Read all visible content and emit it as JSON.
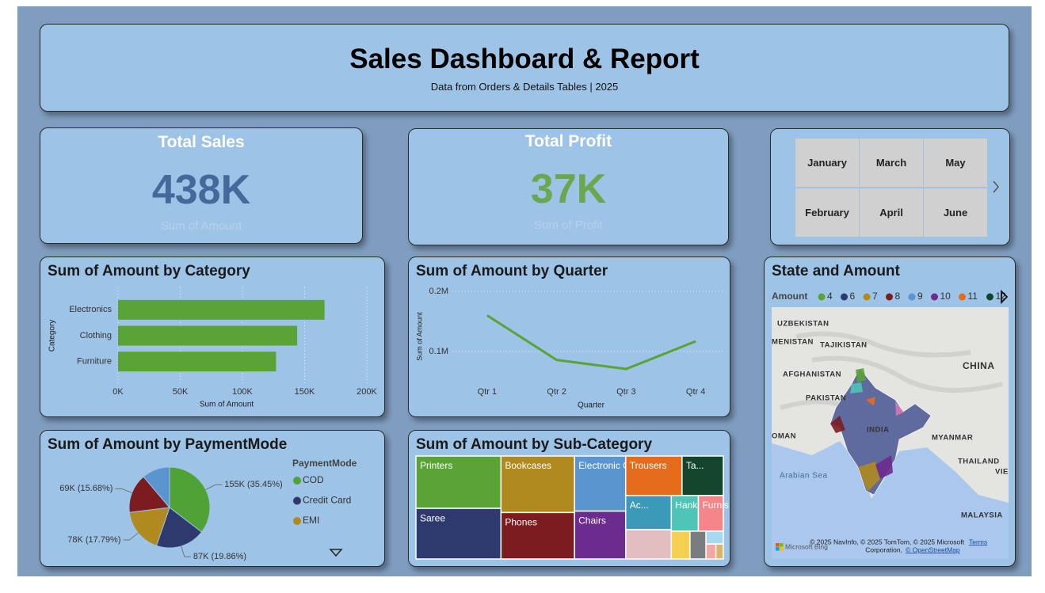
{
  "header": {
    "title": "Sales Dashboard & Report",
    "subtitle": "Data from Orders & Details Tables | 2025"
  },
  "kpis": [
    {
      "title": "Total Sales",
      "value": "438K",
      "label": "Sum of Amount",
      "color": "#44699a"
    },
    {
      "title": "Total Profit",
      "value": "37K",
      "label": "Sum of Profit",
      "color": "#6aa84f"
    }
  ],
  "slicer": {
    "items": [
      "January",
      "March",
      "May",
      "February",
      "April",
      "June"
    ]
  },
  "chart_data": [
    {
      "type": "bar",
      "orientation": "horizontal",
      "title": "Sum of Amount by Category",
      "categories": [
        "Electronics",
        "Clothing",
        "Furniture"
      ],
      "values": [
        166000,
        144000,
        127000
      ],
      "color": "#5aa437",
      "xlim": [
        0,
        200000
      ],
      "xticks": [
        {
          "value": 0,
          "label": "0K"
        },
        {
          "value": 50000,
          "label": "50K"
        },
        {
          "value": 100000,
          "label": "100K"
        },
        {
          "value": 150000,
          "label": "150K"
        },
        {
          "value": 200000,
          "label": "200K"
        }
      ],
      "xlabel": "Sum of Amount",
      "ylabel": "Category",
      "grid": true
    },
    {
      "type": "line",
      "title": "Sum of Amount by Quarter",
      "categories": [
        "Qtr 1",
        "Qtr 2",
        "Qtr 3",
        "Qtr 4"
      ],
      "values": [
        160000,
        86000,
        71000,
        117000
      ],
      "color": "#5aa437",
      "ylim": [
        50000,
        200000
      ],
      "yticks": [
        {
          "value": 100000,
          "label": "0.1M"
        },
        {
          "value": 200000,
          "label": "0.2M"
        }
      ],
      "xlabel": "Quarter",
      "ylabel": "Sum of Amount",
      "grid": true
    },
    {
      "type": "pie",
      "title": "Sum of Amount by PaymentMode",
      "legend_title": "PaymentMode",
      "categories": [
        "COD",
        "Credit Card",
        "EMI",
        null,
        null
      ],
      "values": [
        155000,
        87000,
        78000,
        69000,
        49000
      ],
      "value_labels": [
        "155K (35.45%)",
        "87K (19.86%)",
        "78K (17.79%)",
        "69K (15.68%)",
        null
      ],
      "colors": [
        "#4fa336",
        "#2e3a6e",
        "#b08a1f",
        "#7b1c20",
        "#5b95d0"
      ]
    },
    {
      "type": "treemap",
      "title": "Sum of Amount by Sub-Category",
      "categories": [
        "Printers",
        "Saree",
        "Bookcases",
        "Phones",
        "Electronic G...",
        "Chairs",
        "Trousers",
        "Ta...",
        "Ac...",
        null,
        "Hank...",
        "Furnis...",
        null,
        null,
        null,
        null,
        null
      ],
      "values": [
        60000,
        58000,
        56000,
        46000,
        38000,
        33000,
        30000,
        22000,
        21000,
        18000,
        13000,
        12000,
        7000,
        6000,
        3000,
        2000,
        1500
      ],
      "colors": [
        "#5aa437",
        "#2e3a6e",
        "#b08a1f",
        "#7b1c20",
        "#5b95d0",
        "#6b2b8f",
        "#e56c1c",
        "#12452c",
        "#3a9ab8",
        "#e2bec1",
        "#4ec5b5",
        "#f4868a",
        "#f5cf4f",
        "#7a7d80",
        "#a8d8ef",
        "#f2a7a2",
        "#d8b56a"
      ]
    }
  ],
  "map": {
    "title": "State and Amount",
    "legend_title": "Amount",
    "legend": [
      {
        "label": "4",
        "color": "#5aa437"
      },
      {
        "label": "6",
        "color": "#2e3a6e"
      },
      {
        "label": "7",
        "color": "#b08a1f"
      },
      {
        "label": "8",
        "color": "#7b1c20"
      },
      {
        "label": "9",
        "color": "#5b95d0"
      },
      {
        "label": "10",
        "color": "#6b2b8f"
      },
      {
        "label": "11",
        "color": "#e56c1c"
      },
      {
        "label": "12",
        "color": "#12452c"
      }
    ],
    "places": [
      "UZBEKISTAN",
      "MENISTAN",
      "TAJIKISTAN",
      "AFGHANISTAN",
      "PAKISTAN",
      "CHINA",
      "INDIA",
      "MYANMAR",
      "OMAN",
      "THAILAND",
      "VIE",
      "Arabian Sea",
      "MALAYSIA"
    ],
    "attribution": "© 2025 NavInfo, © 2025 TomTom, © 2025 Microsoft",
    "attribution2": "Corporation,",
    "osm": "© OpenStreetMap",
    "terms": "Terms",
    "bing": "Microsoft Bing"
  }
}
